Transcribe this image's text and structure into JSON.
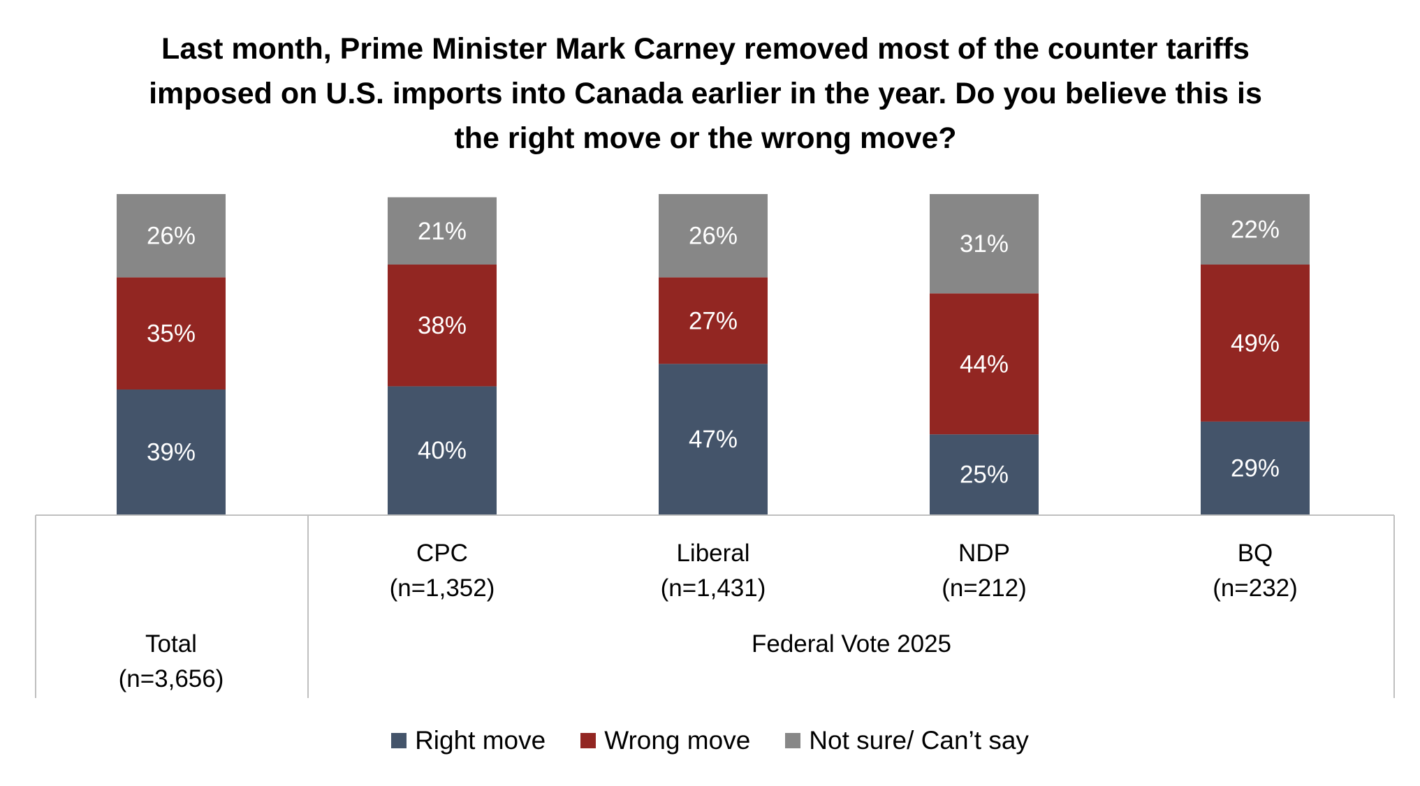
{
  "chart_data": {
    "type": "bar",
    "stacked": true,
    "title": "Last month, Prime Minister Mark Carney removed most of the counter tariffs imposed on U.S. imports into Canada earlier in the year. Do you believe this is the right move or the wrong move?",
    "categories": [
      {
        "name": "",
        "n": "(n=3,656)",
        "label": "Total"
      },
      {
        "name": "CPC",
        "n": "(n=1,352)"
      },
      {
        "name": "Liberal",
        "n": "(n=1,431)"
      },
      {
        "name": "NDP",
        "n": "(n=212)"
      },
      {
        "name": "BQ",
        "n": "(n=232)"
      }
    ],
    "group_label": "Federal Vote 2025",
    "series": [
      {
        "name": "Right move",
        "color": "#44546a",
        "values": [
          39,
          40,
          47,
          25,
          29
        ],
        "labels": [
          "39%",
          "40%",
          "47%",
          "25%",
          "29%"
        ]
      },
      {
        "name": "Wrong move",
        "color": "#922622",
        "values": [
          35,
          38,
          27,
          44,
          49
        ],
        "labels": [
          "35%",
          "38%",
          "27%",
          "44%",
          "49%"
        ]
      },
      {
        "name": "Not sure/ Can’t say",
        "color": "#878787",
        "values": [
          26,
          21,
          26,
          31,
          22
        ],
        "labels": [
          "26%",
          "21%",
          "26%",
          "31%",
          "22%"
        ]
      }
    ],
    "ylim": [
      0,
      100
    ],
    "legend_position": "bottom"
  }
}
